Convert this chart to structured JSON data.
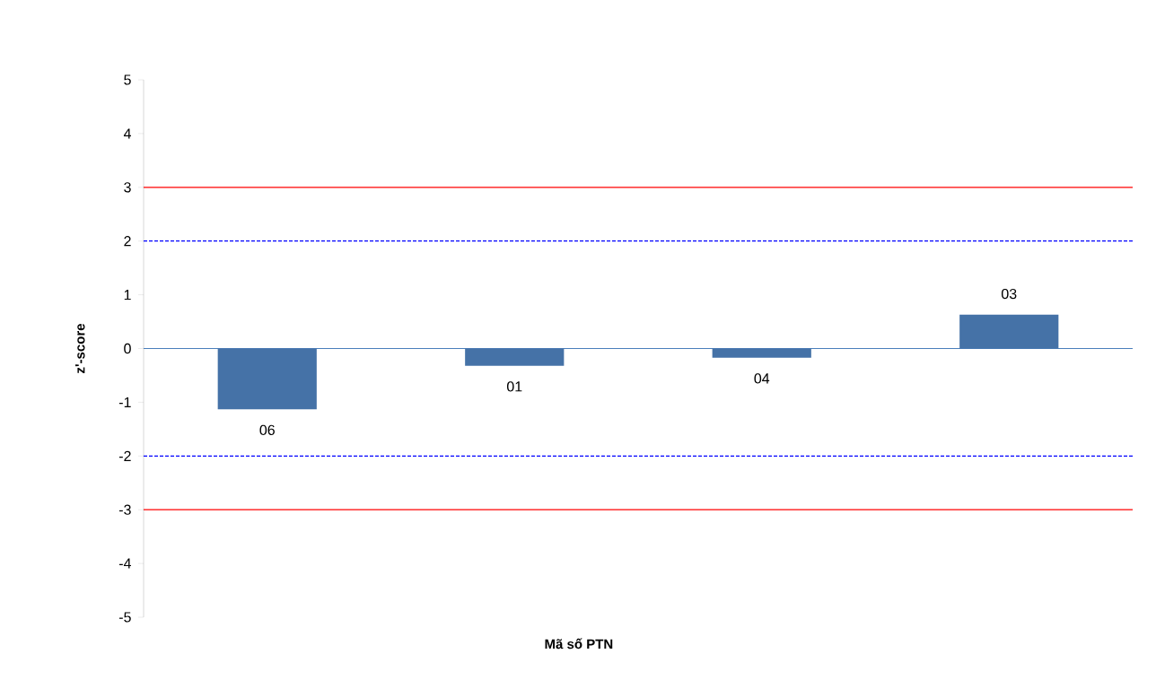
{
  "chart_data": {
    "type": "bar",
    "xlabel": "Mã số PTN",
    "ylabel": "z'-score",
    "categories": [
      "06",
      "01",
      "04",
      "03"
    ],
    "values": [
      -1.13,
      -0.32,
      -0.17,
      0.63
    ],
    "color": "#4572a7",
    "ylim": [
      -5,
      5
    ],
    "yticks": [
      -5,
      -4,
      -3,
      -2,
      -1,
      0,
      1,
      2,
      3,
      4,
      5
    ],
    "tick_labels": "y",
    "ref_lines": [
      {
        "axis": "y",
        "value": 3,
        "color": "#ff0000",
        "line_style": "solid"
      },
      {
        "axis": "y",
        "value": 2,
        "color": "#0000ff",
        "line_style": "dashed"
      },
      {
        "axis": "y",
        "value": -2,
        "color": "#0000ff",
        "line_style": "dashed"
      },
      {
        "axis": "y",
        "value": -3,
        "color": "#ff0000",
        "line_style": "solid"
      },
      {
        "axis": "y",
        "value": 0,
        "color": "#4a7ebb",
        "line_style": "solid"
      }
    ]
  }
}
